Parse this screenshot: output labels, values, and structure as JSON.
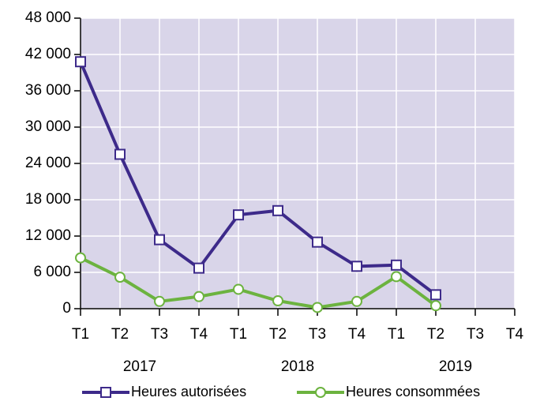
{
  "chart_data": {
    "type": "line",
    "categories": [
      "T1",
      "T2",
      "T3",
      "T4",
      "T1",
      "T2",
      "T3",
      "T4",
      "T1",
      "T2",
      "T3",
      "T4"
    ],
    "groups": [
      "2017",
      "2018",
      "2019"
    ],
    "series": [
      {
        "name": "Heures autorisées",
        "color": "#3d2a8a",
        "marker": "square",
        "values": [
          40800,
          25500,
          11400,
          6700,
          15500,
          16200,
          11000,
          7000,
          7200,
          2300,
          null,
          null
        ]
      },
      {
        "name": "Heures consommées",
        "color": "#6cb33f",
        "marker": "circle",
        "values": [
          8400,
          5200,
          1200,
          2000,
          3200,
          1300,
          200,
          1200,
          5300,
          500,
          null,
          null
        ]
      }
    ],
    "ylim": [
      0,
      48000
    ],
    "yticks": [
      0,
      {
        "value": 6000,
        "label": "6 000"
      },
      {
        "value": 12000,
        "label": "12 000"
      },
      {
        "value": 18000,
        "label": "18 000"
      },
      {
        "value": 24000,
        "label": "24 000"
      },
      {
        "value": 30000,
        "label": "30 000"
      },
      {
        "value": 36000,
        "label": "36 000"
      },
      {
        "value": 42000,
        "label": "42 000"
      },
      {
        "value": 48000,
        "label": "48 000"
      }
    ],
    "grid": true
  }
}
